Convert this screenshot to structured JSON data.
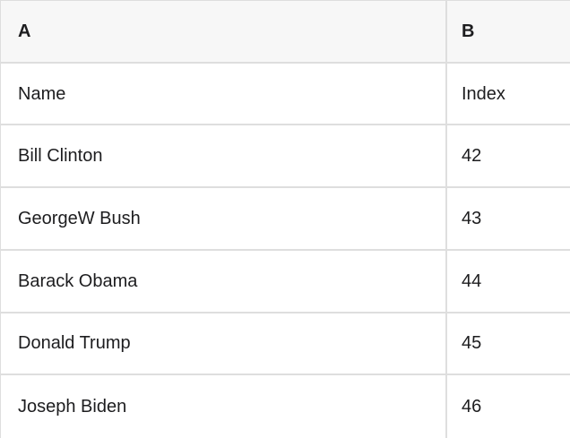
{
  "colors": {
    "header_background": "#f7f7f7",
    "border": "#dedede",
    "text": "#1d1d1f"
  },
  "table": {
    "column_letters": [
      "A",
      "B"
    ],
    "rows": [
      [
        "Name",
        "Index"
      ],
      [
        "Bill Clinton",
        "42"
      ],
      [
        "GeorgeW Bush",
        "43"
      ],
      [
        "Barack Obama",
        "44"
      ],
      [
        "Donald Trump",
        "45"
      ],
      [
        "Joseph Biden",
        "46"
      ]
    ]
  }
}
